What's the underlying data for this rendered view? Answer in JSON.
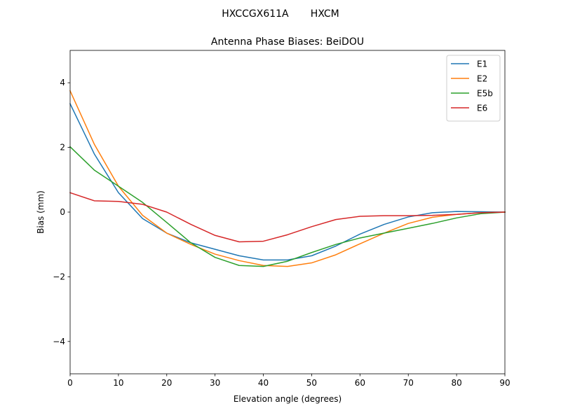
{
  "suptitle": "HXCCGX611A       HXCM",
  "chart_data": {
    "type": "line",
    "title": "Antenna Phase Biases: BeiDOU",
    "xlabel": "Elevation angle (degrees)",
    "ylabel": "Bias (mm)",
    "xlim": [
      0,
      90
    ],
    "ylim": [
      -5,
      5
    ],
    "xticks": [
      0,
      10,
      20,
      30,
      40,
      50,
      60,
      70,
      80,
      90
    ],
    "xtick_labels": [
      "0",
      "10",
      "20",
      "30",
      "40",
      "50",
      "60",
      "70",
      "80",
      "90"
    ],
    "yticks": [
      -4,
      -2,
      0,
      2,
      4
    ],
    "ytick_labels": [
      "−4",
      "−2",
      "0",
      "2",
      "4"
    ],
    "grid": false,
    "legend_position": "top-right",
    "x": [
      0,
      5,
      10,
      15,
      20,
      25,
      30,
      35,
      40,
      45,
      50,
      55,
      60,
      65,
      70,
      75,
      80,
      85,
      90
    ],
    "series": [
      {
        "name": "E1",
        "color": "#1f77b4",
        "values": [
          3.35,
          1.8,
          0.6,
          -0.2,
          -0.65,
          -0.95,
          -1.15,
          -1.35,
          -1.48,
          -1.48,
          -1.35,
          -1.05,
          -0.68,
          -0.38,
          -0.15,
          -0.02,
          0.02,
          0.01,
          0.0
        ]
      },
      {
        "name": "E2",
        "color": "#ff7f0e",
        "values": [
          3.75,
          2.1,
          0.8,
          -0.1,
          -0.65,
          -1.0,
          -1.3,
          -1.5,
          -1.65,
          -1.68,
          -1.57,
          -1.32,
          -0.98,
          -0.65,
          -0.35,
          -0.16,
          -0.07,
          -0.02,
          0.0
        ]
      },
      {
        "name": "E5b",
        "color": "#2ca02c",
        "values": [
          2.02,
          1.3,
          0.8,
          0.3,
          -0.32,
          -0.95,
          -1.4,
          -1.65,
          -1.68,
          -1.52,
          -1.25,
          -1.0,
          -0.8,
          -0.65,
          -0.5,
          -0.35,
          -0.18,
          -0.05,
          0.0
        ]
      },
      {
        "name": "E6",
        "color": "#d62728",
        "values": [
          0.6,
          0.35,
          0.33,
          0.24,
          0.0,
          -0.38,
          -0.72,
          -0.92,
          -0.9,
          -0.7,
          -0.45,
          -0.23,
          -0.13,
          -0.11,
          -0.11,
          -0.1,
          -0.07,
          -0.02,
          0.0
        ]
      }
    ]
  }
}
